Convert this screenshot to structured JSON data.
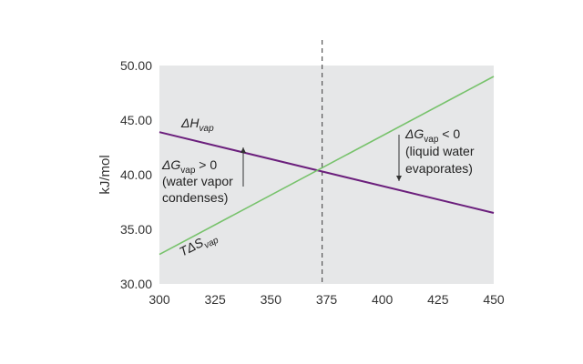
{
  "chart_data": {
    "type": "line",
    "ylabel": "kJ/mol",
    "xlim": [
      300,
      450
    ],
    "ylim": [
      30,
      50
    ],
    "x_ticks": [
      "300",
      "325",
      "350",
      "375",
      "400",
      "425",
      "450"
    ],
    "y_ticks": [
      "30.00",
      "35.00",
      "40.00",
      "45.00",
      "50.00"
    ],
    "grid": false,
    "background": "#e6e7e8",
    "series": [
      {
        "name": "ΔHvap",
        "color": "#6b1f7c",
        "x": [
          300,
          450
        ],
        "y": [
          43.9,
          36.5
        ]
      },
      {
        "name": "TΔSvap",
        "color": "#77c26b",
        "x": [
          300,
          450
        ],
        "y": [
          32.7,
          49.0
        ]
      }
    ],
    "crossover_x": 373,
    "labels": {
      "dh_main": "ΔH",
      "dh_sub": "vap",
      "tds_main": "TΔS",
      "tds_sub": "vap"
    },
    "annotations": {
      "left": {
        "pre": "ΔG",
        "sub": "vap",
        "post": " > 0",
        "line2": "(water vapor",
        "line3": "condenses)"
      },
      "right": {
        "pre": "ΔG",
        "sub": "vap",
        "post": " < 0",
        "line2": "(liquid water",
        "line3": "evaporates)"
      }
    }
  }
}
